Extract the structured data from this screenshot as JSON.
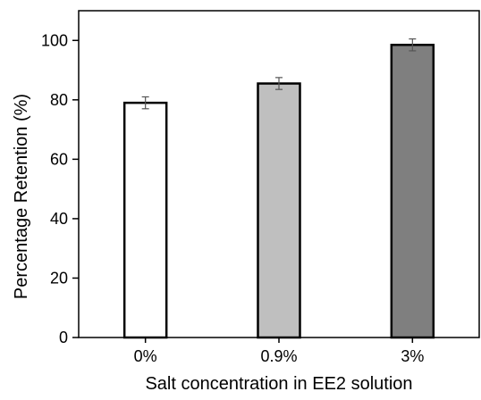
{
  "chart_data": {
    "type": "bar",
    "title": "",
    "xlabel": "Salt concentration in EE2 solution",
    "ylabel": "Percentage Retention (%)",
    "categories": [
      "0%",
      "0.9%",
      "3%"
    ],
    "values": [
      79,
      85.5,
      98.5
    ],
    "error": [
      2,
      2,
      2
    ],
    "ylim": [
      0,
      110
    ],
    "yticks": [
      0,
      20,
      40,
      60,
      80,
      100
    ],
    "ytick_labels": [
      "0",
      "20",
      "40",
      "60",
      "80",
      "100"
    ],
    "grid": false,
    "legend": "none",
    "bar_colors": [
      "#ffffff",
      "#bfbfbf",
      "#7f7f7f"
    ],
    "bar_edge_color": "#000000",
    "error_bar_color": "#555555"
  }
}
